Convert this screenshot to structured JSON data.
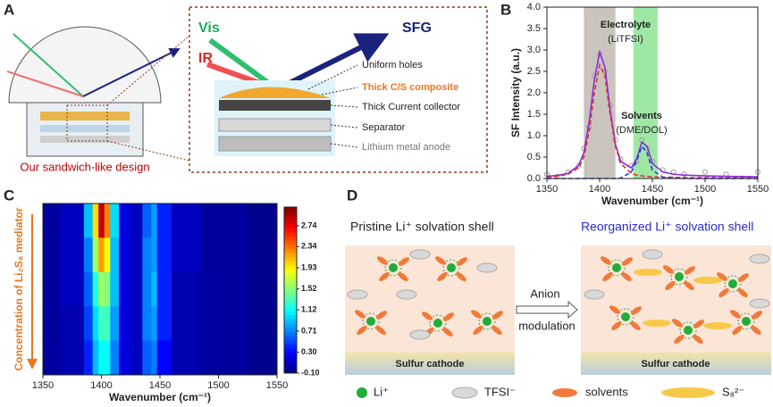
{
  "panel_labels": [
    "A",
    "B",
    "C",
    "D"
  ],
  "panel_a": {
    "beam_labels": [
      "Vis",
      "IR",
      "SFG"
    ],
    "caption": "Our sandwich-like design",
    "layers": [
      "Uniform holes",
      "Thick C/S composite",
      "Thick Current collector",
      "Separator",
      "Lithium metal anode"
    ]
  },
  "panel_d": {
    "left_title": "Pristine Li⁺ solvation shell",
    "right_title": "Reorganized Li⁺ solvation shell",
    "arrow_top": "Anion",
    "arrow_bottom": "modulation",
    "cathode": [
      "Sulfur cathode",
      "Sulfur cathode"
    ],
    "legend": [
      "Li⁺",
      "TFSI⁻",
      "solvents",
      "S₈²⁻"
    ]
  },
  "chart_data": [
    {
      "type": "line",
      "xlabel": "Wavenumber (cm⁻¹)",
      "ylabel": "SF Intensity (a.u.)",
      "annotations": [
        "Electrolyte",
        "(LiTFSI)",
        "Solvents",
        "(DME/DOL)"
      ],
      "x": [
        1350,
        1360,
        1370,
        1380,
        1385,
        1390,
        1395,
        1400,
        1405,
        1410,
        1415,
        1420,
        1430,
        1435,
        1440,
        1445,
        1450,
        1460,
        1470,
        1480,
        1500,
        1520,
        1550
      ],
      "series": [
        {
          "color": "#9a9a9a",
          "style": "markers",
          "values": [
            0.1,
            0.05,
            0.15,
            0.3,
            0.7,
            1.2,
            2.4,
            2.9,
            2.5,
            1.7,
            0.9,
            0.45,
            0.3,
            0.4,
            0.9,
            0.7,
            0.4,
            0.2,
            0.15,
            0.1,
            0.15,
            0.1,
            0.15
          ]
        },
        {
          "color": "#8a2be2",
          "values": [
            0.05,
            0.07,
            0.12,
            0.3,
            0.6,
            1.3,
            2.3,
            2.95,
            2.6,
            1.6,
            0.8,
            0.4,
            0.25,
            0.45,
            0.85,
            0.75,
            0.35,
            0.15,
            0.1,
            0.08,
            0.06,
            0.05,
            0.04
          ]
        },
        {
          "color": "#e03030",
          "dash": true,
          "values": [
            0.03,
            0.05,
            0.1,
            0.25,
            0.5,
            1.1,
            2.0,
            2.65,
            2.4,
            1.5,
            0.75,
            0.35,
            0.12,
            0.08,
            0.06,
            0.05,
            0.04,
            0.03,
            0.03,
            0.02,
            0.02,
            0.02,
            0.01
          ]
        },
        {
          "color": "#1f3fd0",
          "dash": true,
          "values": [
            0,
            0,
            0,
            0,
            0,
            0,
            0,
            0,
            0,
            0,
            0,
            0.01,
            0.15,
            0.4,
            0.75,
            0.6,
            0.2,
            0.03,
            0.01,
            0,
            0,
            0,
            0
          ]
        }
      ],
      "bands": [
        {
          "from": 1385,
          "to": 1415,
          "color": "#c9c5bd"
        },
        {
          "from": 1432,
          "to": 1455,
          "color": "#9fe8a4"
        }
      ],
      "xlim": [
        1350,
        1550
      ],
      "ylim": [
        0,
        4
      ],
      "xticks": [
        1350,
        1400,
        1450,
        1500,
        1550
      ],
      "yticks": [
        {
          "value": 0,
          "label": "0.0"
        },
        0.5,
        {
          "value": 1,
          "label": "1.0"
        },
        1.5,
        {
          "value": 2,
          "label": "2.0"
        },
        2.5,
        {
          "value": 3,
          "label": "3.0"
        },
        3.5,
        {
          "value": 4,
          "label": "4.0"
        }
      ]
    },
    {
      "type": "heatmap",
      "xlabel": "Wavenumber (cm⁻¹)",
      "ylabel": "Concentration of Li₂S₈ mediator",
      "x": [
        1350,
        1380,
        1390,
        1395,
        1400,
        1405,
        1410,
        1420,
        1430,
        1440,
        1445,
        1450,
        1470,
        1500,
        1550
      ],
      "z": [
        [
          0,
          0.1,
          0.9,
          2.0,
          2.9,
          2.3,
          1.0,
          0.2,
          0.1,
          0.6,
          0.8,
          0.4,
          0.1,
          0,
          -0.05
        ],
        [
          0,
          0.1,
          0.7,
          1.6,
          2.2,
          1.9,
          0.9,
          0.2,
          0.1,
          0.7,
          0.8,
          0.4,
          0.1,
          0,
          -0.05
        ],
        [
          0,
          0.1,
          0.6,
          1.2,
          1.6,
          1.5,
          0.9,
          0.2,
          0.1,
          0.7,
          0.9,
          0.4,
          0.05,
          0,
          -0.05
        ],
        [
          0,
          0.05,
          0.5,
          1.0,
          1.3,
          1.3,
          0.8,
          0.2,
          0.1,
          0.7,
          0.8,
          0.4,
          0.05,
          0,
          -0.05
        ],
        [
          0,
          0.05,
          0.4,
          0.9,
          1.1,
          1.1,
          0.7,
          0.2,
          0.1,
          0.6,
          0.7,
          0.3,
          0.05,
          0,
          -0.05
        ]
      ],
      "xlim": [
        1350,
        1550
      ],
      "xticks": [
        1350,
        1400,
        1450,
        1500,
        1550
      ],
      "clim": [
        -0.1,
        3.1
      ],
      "cticks": [
        {
          "value": -0.1,
          "label": "-0.10"
        },
        {
          "value": 0.3,
          "label": "0.30"
        },
        0.71,
        1.12,
        1.52,
        1.93,
        2.34,
        2.74
      ]
    }
  ]
}
